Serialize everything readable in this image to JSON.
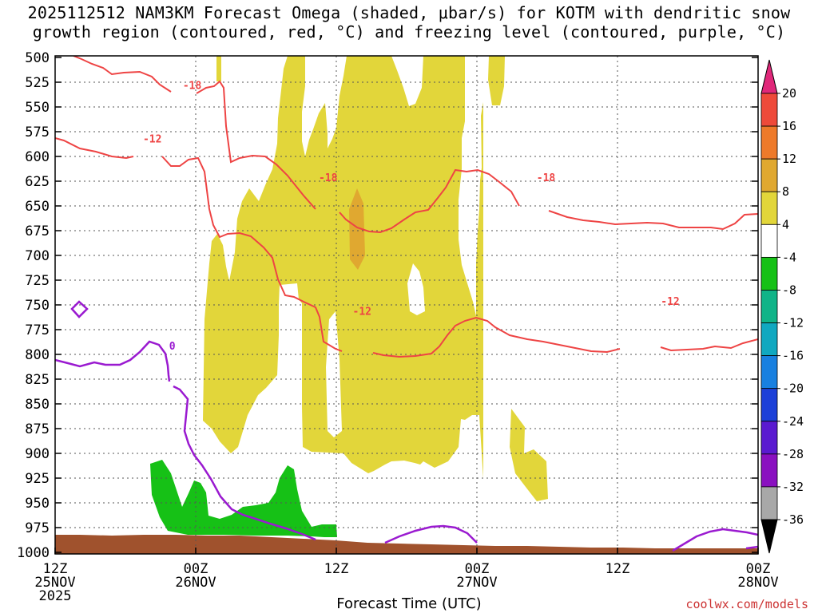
{
  "title": {
    "line1": "2025112512 NAM3KM Forecast Omega (shaded, μbar/s) for KOTM with dendritic snow",
    "line2": "growth region (contoured, red, °C) and freezing level (contoured, purple, °C)"
  },
  "xlabel": "Forecast Time (UTC)",
  "credit": "coolwx.com/models",
  "chart_data": {
    "type": "heatmap",
    "y_levels": [
      "500",
      "525",
      "550",
      "575",
      "600",
      "625",
      "650",
      "675",
      "700",
      "725",
      "750",
      "775",
      "800",
      "825",
      "850",
      "875",
      "900",
      "925",
      "950",
      "975",
      "1000"
    ],
    "y_unit": "hPa",
    "x_ticks": [
      {
        "hour": 0,
        "l1": "12Z",
        "l2": "25NOV",
        "l3": "2025"
      },
      {
        "hour": 12,
        "l1": "00Z",
        "l2": "26NOV",
        "l3": ""
      },
      {
        "hour": 24,
        "l1": "12Z",
        "l2": "",
        "l3": ""
      },
      {
        "hour": 36,
        "l1": "00Z",
        "l2": "27NOV",
        "l3": ""
      },
      {
        "hour": 48,
        "l1": "12Z",
        "l2": "",
        "l3": ""
      },
      {
        "hour": 60,
        "l1": "00Z",
        "l2": "28NOV",
        "l3": ""
      }
    ],
    "x_range_hours": [
      0,
      60
    ],
    "colorbar": {
      "labels": [
        "20",
        "16",
        "12",
        "8",
        "4",
        "-4",
        "-8",
        "-12",
        "-16",
        "-20",
        "-24",
        "-28",
        "-32",
        "-36"
      ],
      "colors": [
        "#e0287a",
        "#ee4a3a",
        "#ee7a2a",
        "#e0a830",
        "#e2d63a",
        "#ffffff",
        "#16c116",
        "#10b488",
        "#10a8c0",
        "#1880e0",
        "#1c40d8",
        "#5a1ad0",
        "#8a10c0",
        "#a8a8a8"
      ]
    },
    "shading": [
      {
        "class": "4 to 8",
        "color": "#e2d63a"
      },
      {
        "class": "8 to 12",
        "color": "#e0a830"
      },
      {
        "class": "-8 to -4",
        "color": "#16c116"
      }
    ],
    "contours": {
      "dgz_color": "#ee4444",
      "freezing_color": "#9a1ad0",
      "labels": [
        {
          "text": "-18",
          "color": "#ee4444",
          "hour": 11.7,
          "level": 528
        },
        {
          "text": "-12",
          "color": "#ee4444",
          "hour": 8.3,
          "level": 582
        },
        {
          "text": "-18",
          "color": "#ee4444",
          "hour": 23.3,
          "level": 621
        },
        {
          "text": "-18",
          "color": "#ee4444",
          "hour": 41.9,
          "level": 621
        },
        {
          "text": "-12",
          "color": "#ee4444",
          "hour": 26.2,
          "level": 756
        },
        {
          "text": "-12",
          "color": "#ee4444",
          "hour": 52.5,
          "level": 746
        },
        {
          "text": "0",
          "color": "#9a1ad0",
          "hour": 10.0,
          "level": 791
        }
      ]
    },
    "terrain_color": "#a0522d"
  }
}
